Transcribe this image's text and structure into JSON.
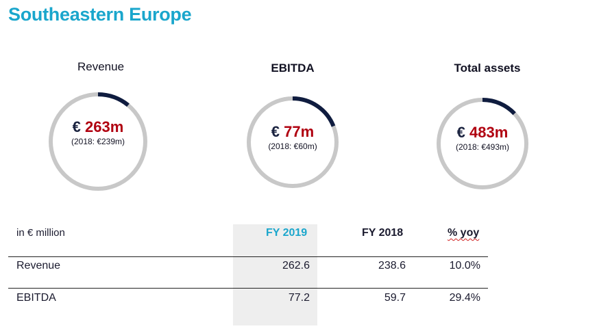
{
  "page": {
    "title": "Southeastern Europe"
  },
  "kpis": [
    {
      "title": "Revenue",
      "currency": "€",
      "value": "263m",
      "previous": "(2018: €239m)",
      "fill_fraction": 0.11
    },
    {
      "title": "EBITDA",
      "currency": "€",
      "value": "77m",
      "previous": "(2018: €60m)",
      "fill_fraction": 0.19
    },
    {
      "title": "Total assets",
      "currency": "€",
      "value": "483m",
      "previous": "(2018: €493m)",
      "fill_fraction": 0.13
    }
  ],
  "colors": {
    "accent": "#1aa6cc",
    "value_red": "#b00010",
    "ring_track": "#c8c8c8",
    "ring_fill": "#0f1c3f"
  },
  "table": {
    "unit_label": "in € million",
    "headers": [
      "FY 2019",
      "FY 2018",
      "% yoy"
    ],
    "rows": [
      {
        "label": "Revenue",
        "fy2019": "262.6",
        "fy2018": "238.6",
        "yoy": "10.0%"
      },
      {
        "label": "EBITDA",
        "fy2019": "77.2",
        "fy2018": "59.7",
        "yoy": "29.4%"
      }
    ]
  }
}
